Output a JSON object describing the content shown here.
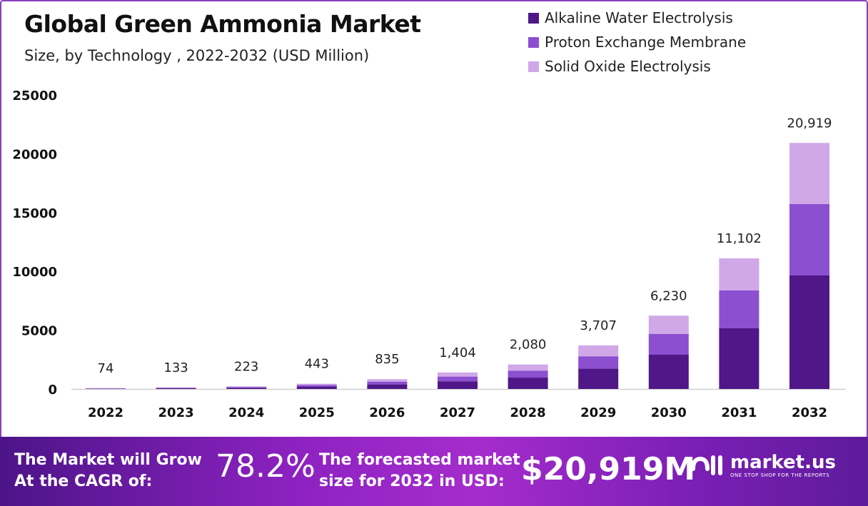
{
  "chart_data": {
    "type": "bar",
    "stacked": true,
    "title": "Global Green Ammonia Market",
    "subtitle": "Size, by Technology , 2022-2032 (USD Million)",
    "categories": [
      "2022",
      "2023",
      "2024",
      "2025",
      "2026",
      "2027",
      "2028",
      "2029",
      "2030",
      "2031",
      "2032"
    ],
    "series": [
      {
        "name": "Alkaline Water Electrolysis",
        "color": "#4f1787",
        "values": [
          34,
          62,
          104,
          206,
          388,
          653,
          967,
          1724,
          2913,
          5160,
          9648
        ]
      },
      {
        "name": "Proton Exchange Membrane",
        "color": "#8b4fd0",
        "values": [
          21,
          38,
          63,
          126,
          238,
          400,
          593,
          1056,
          1760,
          3215,
          6068
        ]
      },
      {
        "name": "Solid Oxide Electrolysis",
        "color": "#d0a8e8",
        "values": [
          19,
          33,
          56,
          111,
          209,
          351,
          520,
          927,
          1557,
          2727,
          5203
        ]
      }
    ],
    "totals": [
      74,
      133,
      223,
      443,
      835,
      1404,
      2080,
      3707,
      6230,
      11102,
      20919
    ],
    "total_labels": [
      "74",
      "133",
      "223",
      "443",
      "835",
      "1,404",
      "2,080",
      "3,707",
      "6,230",
      "11,102",
      "20,919"
    ],
    "ylim": [
      0,
      25000
    ],
    "yticks": [
      "0",
      "5000",
      "10000",
      "15000",
      "20000",
      "25000"
    ],
    "grid": false,
    "legend": "top-right"
  },
  "footer": {
    "cagr_text_1": "The Market will Grow",
    "cagr_text_2": "At the CAGR of:",
    "cagr_value": "78.2%",
    "forecast_text_1": "The forecasted market",
    "forecast_text_2": "size for 2032 in USD:",
    "forecast_value": "$20,919M",
    "logo_name": "market.us",
    "logo_tagline": "ONE STOP SHOP FOR THE REPORTS"
  }
}
